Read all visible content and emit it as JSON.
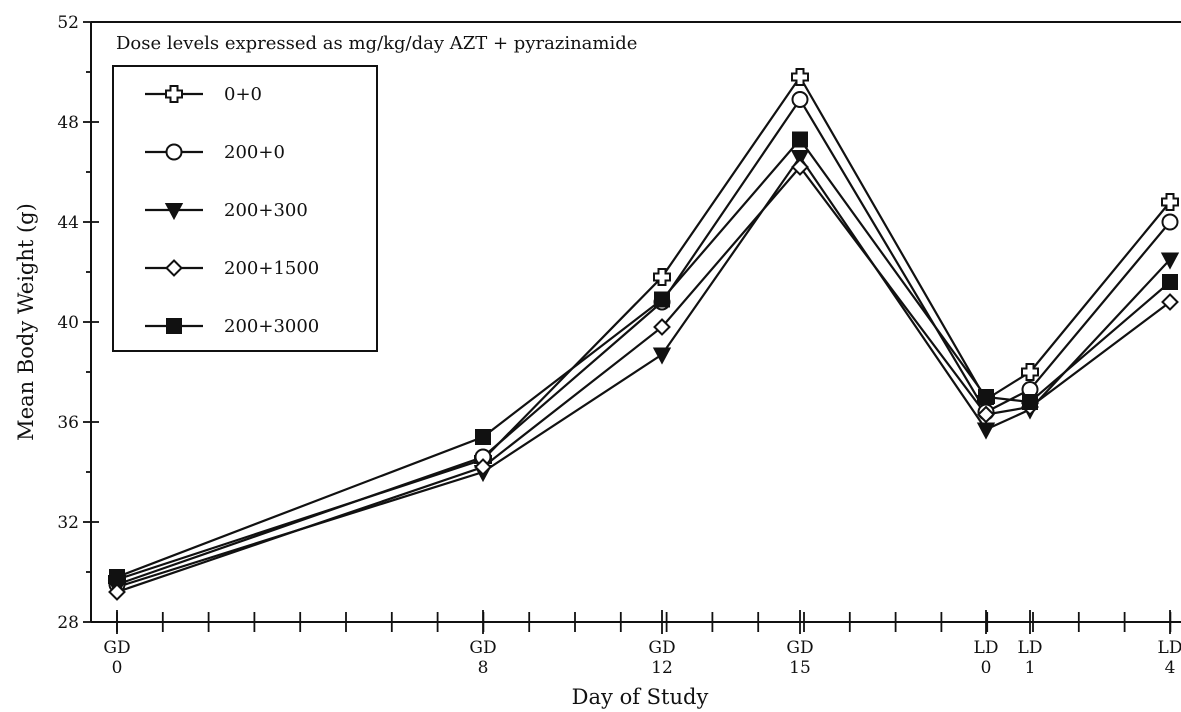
{
  "chart_data": {
    "type": "line",
    "note": "Dose levels expressed as mg/kg/day AZT + pyrazinamide",
    "xlabel": "Day of Study",
    "ylabel": "Mean Body Weight (g)",
    "ylim": [
      28,
      52
    ],
    "yticks": [
      "28",
      "32",
      "36",
      "40",
      "44",
      "48",
      "52"
    ],
    "x_categories": [
      {
        "top": "GD",
        "bottom": "0"
      },
      {
        "top": "GD",
        "bottom": "8"
      },
      {
        "top": "GD",
        "bottom": "12"
      },
      {
        "top": "GD",
        "bottom": "15"
      },
      {
        "top": "LD",
        "bottom": "0"
      },
      {
        "top": "LD",
        "bottom": "1"
      },
      {
        "top": "LD",
        "bottom": "4"
      }
    ],
    "series": [
      {
        "name": "0+0",
        "marker": "open-cross",
        "values": [
          29.7,
          34.5,
          41.8,
          49.8,
          36.9,
          38.0,
          44.8
        ]
      },
      {
        "name": "200+0",
        "marker": "open-circle",
        "values": [
          29.5,
          34.6,
          40.8,
          48.9,
          36.4,
          37.3,
          44.0
        ]
      },
      {
        "name": "200+300",
        "marker": "filled-triangle-down",
        "values": [
          29.4,
          34.0,
          38.7,
          46.6,
          35.7,
          36.5,
          42.5
        ]
      },
      {
        "name": "200+1500",
        "marker": "open-diamond",
        "values": [
          29.2,
          34.2,
          39.8,
          46.2,
          36.3,
          36.6,
          40.8
        ]
      },
      {
        "name": "200+3000",
        "marker": "filled-square",
        "values": [
          29.8,
          35.4,
          40.9,
          47.3,
          37.0,
          36.8,
          41.6
        ]
      }
    ]
  }
}
